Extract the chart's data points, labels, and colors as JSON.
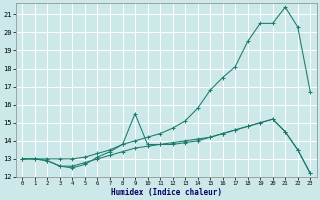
{
  "xlabel": "Humidex (Indice chaleur)",
  "bg_color": "#cce8e8",
  "grid_color": "#ffffff",
  "line_color": "#1a7a6a",
  "xlim": [
    -0.5,
    23.5
  ],
  "ylim": [
    12,
    21.6
  ],
  "xticks": [
    0,
    1,
    2,
    3,
    4,
    5,
    6,
    7,
    8,
    9,
    10,
    11,
    12,
    13,
    14,
    15,
    16,
    17,
    18,
    19,
    20,
    21,
    22,
    23
  ],
  "yticks": [
    12,
    13,
    14,
    15,
    16,
    17,
    18,
    19,
    20,
    21
  ],
  "line1_x": [
    0,
    1,
    2,
    3,
    4,
    5,
    6,
    7,
    8,
    9,
    10,
    11,
    12,
    13,
    14,
    15,
    16,
    17,
    18,
    19,
    20,
    21,
    22,
    23
  ],
  "line1_y": [
    13.0,
    13.0,
    13.0,
    13.0,
    13.0,
    13.1,
    13.3,
    13.5,
    13.8,
    14.0,
    14.2,
    14.4,
    14.7,
    15.1,
    15.8,
    16.8,
    17.5,
    18.1,
    19.5,
    20.5,
    20.5,
    21.4,
    20.3,
    16.7
  ],
  "line2_x": [
    0,
    1,
    2,
    3,
    4,
    5,
    6,
    7,
    8,
    9,
    10,
    11,
    12,
    13,
    14,
    15,
    16,
    17,
    18,
    19,
    20,
    21,
    22,
    23
  ],
  "line2_y": [
    13.0,
    13.0,
    12.9,
    12.6,
    12.6,
    12.8,
    13.0,
    13.2,
    13.4,
    13.6,
    13.7,
    13.8,
    13.9,
    14.0,
    14.1,
    14.2,
    14.4,
    14.6,
    14.8,
    15.0,
    15.2,
    14.5,
    13.5,
    12.2
  ],
  "line3_x": [
    0,
    1,
    2,
    3,
    4,
    5,
    6,
    7,
    8,
    9,
    10,
    11,
    12,
    13,
    14,
    15,
    16,
    17,
    18,
    19,
    20,
    21,
    22,
    23
  ],
  "line3_y": [
    13.0,
    13.0,
    12.9,
    12.6,
    12.5,
    12.7,
    13.1,
    13.4,
    13.8,
    15.5,
    13.8,
    13.8,
    13.8,
    13.9,
    14.0,
    14.2,
    14.4,
    14.6,
    14.8,
    15.0,
    15.2,
    14.5,
    13.5,
    12.2
  ]
}
